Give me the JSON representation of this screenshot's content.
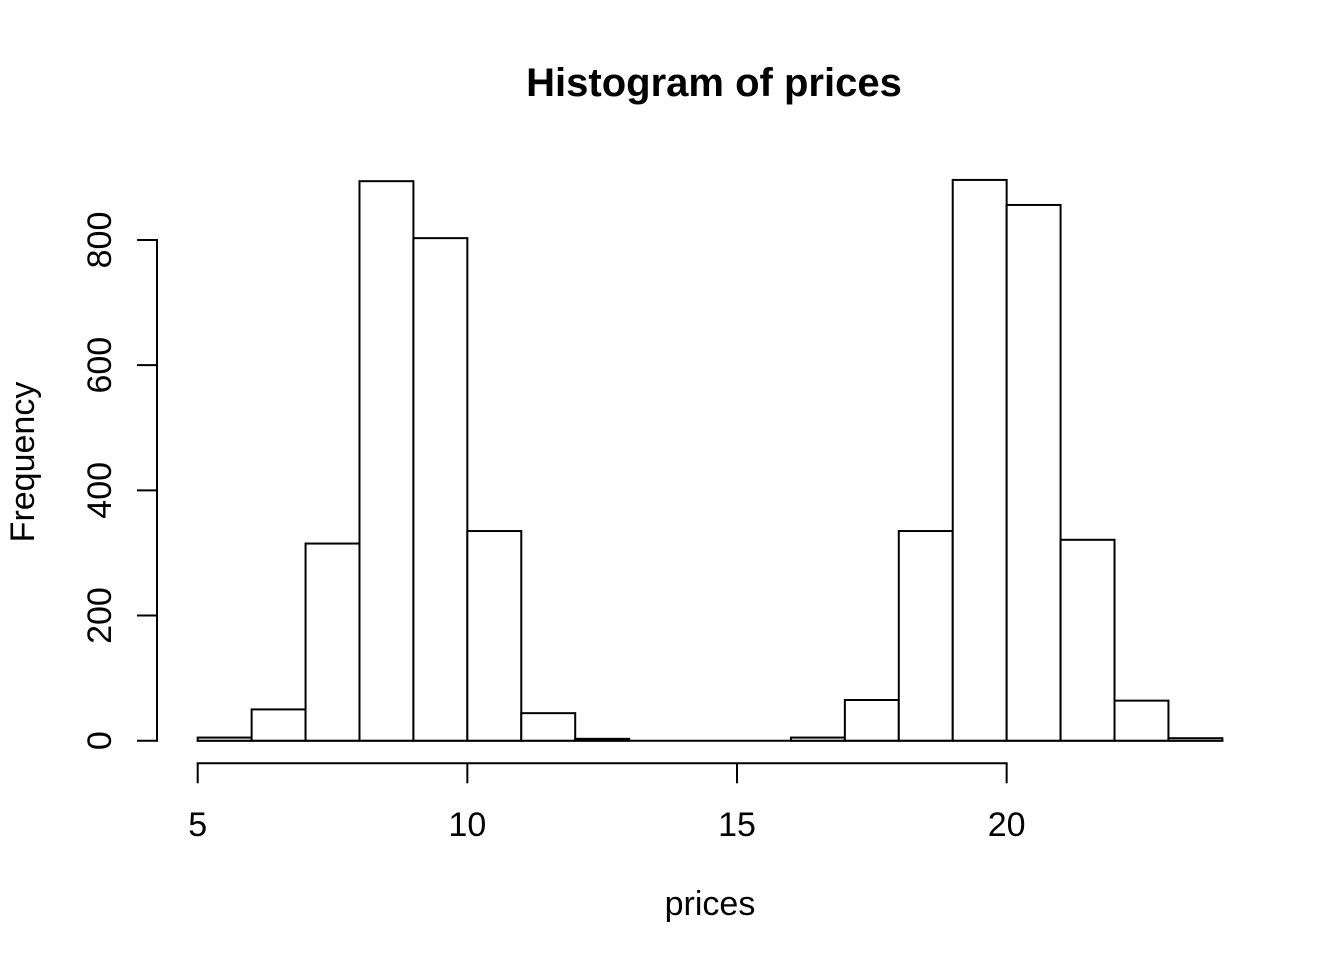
{
  "chart_data": {
    "type": "bar",
    "subtype": "histogram",
    "title": "Histogram of prices",
    "xlabel": "prices",
    "ylabel": "Frequency",
    "bin_edges": [
      5,
      6,
      7,
      8,
      9,
      10,
      11,
      12,
      13,
      14,
      15,
      16,
      17,
      18,
      19,
      20,
      21,
      22,
      23,
      24
    ],
    "counts": [
      5,
      50,
      315,
      894,
      803,
      335,
      44,
      3,
      0,
      0,
      0,
      5,
      65,
      335,
      896,
      856,
      321,
      64,
      4
    ],
    "x_ticks": [
      5,
      10,
      15,
      20
    ],
    "x_tick_labels": [
      "5",
      "10",
      "15",
      "20"
    ],
    "y_ticks": [
      0,
      200,
      400,
      600,
      800
    ],
    "y_tick_labels": [
      "0",
      "200",
      "400",
      "600",
      "800"
    ],
    "xlim": [
      5,
      24
    ],
    "ylim": [
      0,
      896
    ],
    "x_axis_span": [
      5,
      20
    ],
    "grid": false,
    "legend": null,
    "colors": {
      "background": "#ffffff",
      "bar_fill": "#ffffff",
      "bar_stroke": "#000000",
      "axis_stroke": "#000000",
      "text": "#000000"
    }
  }
}
